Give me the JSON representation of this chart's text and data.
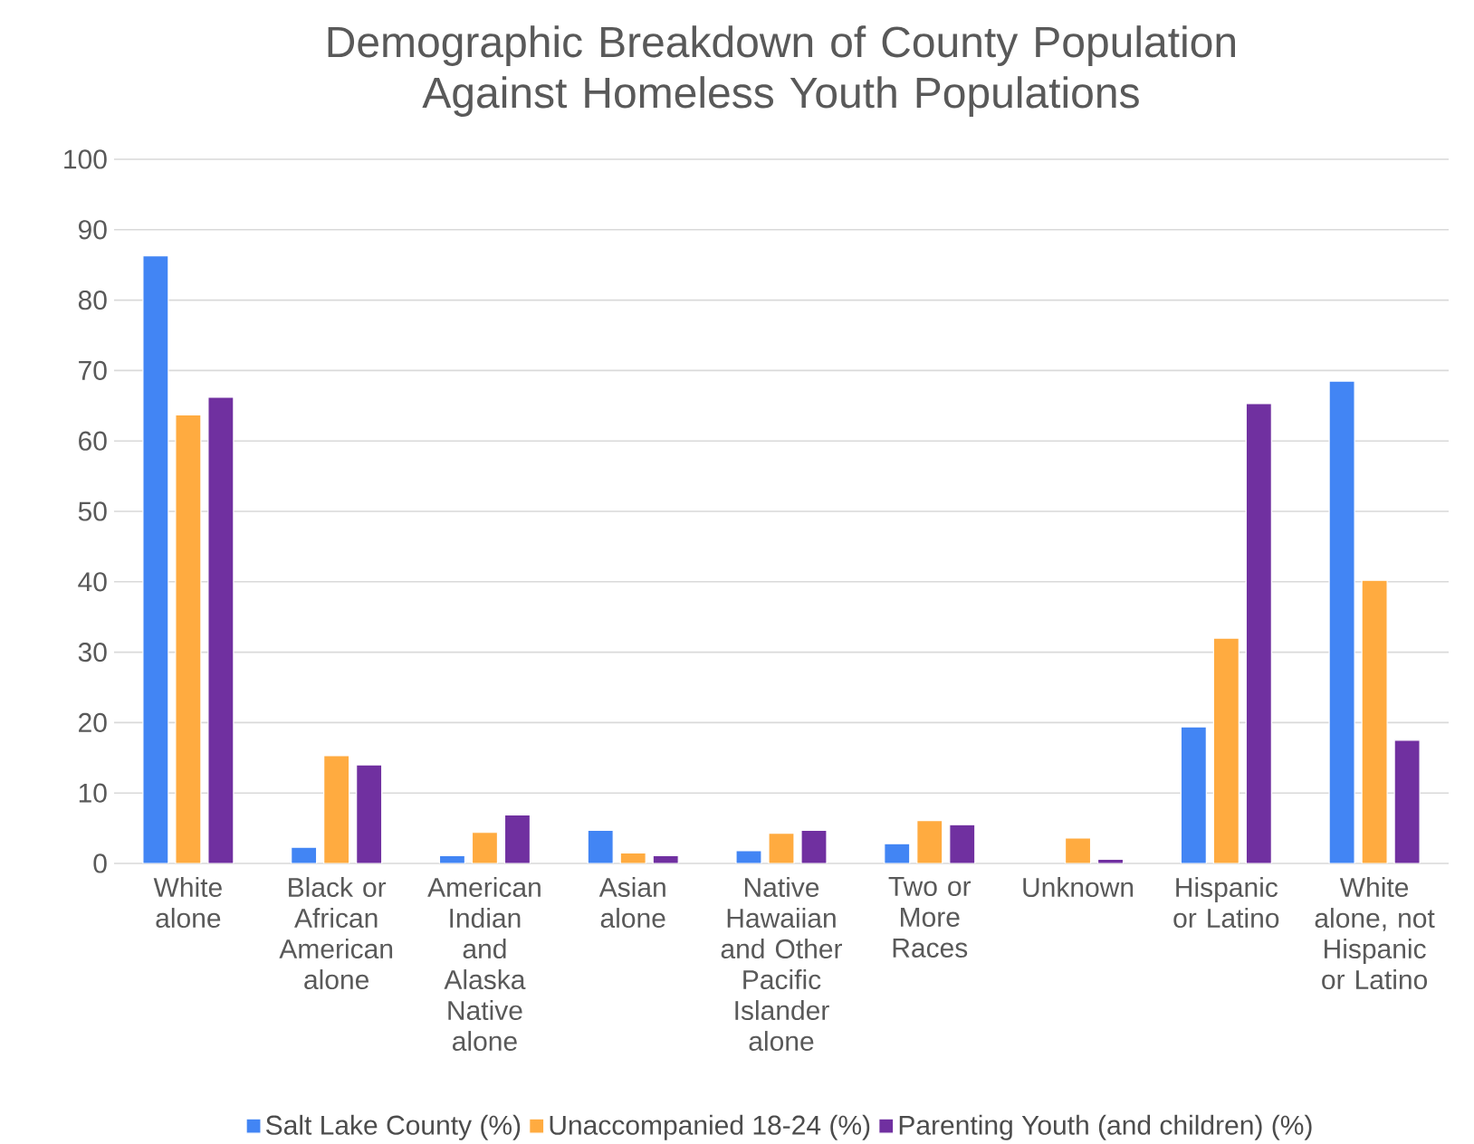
{
  "chart_data": {
    "type": "bar",
    "title": "Demographic Breakdown of County Population Against Homeless Youth Populations",
    "categories": [
      "White alone",
      "Black or African American alone",
      "American Indian and Alaska Native alone",
      "Asian alone",
      "Native Hawaiian and Other Pacific Islander alone",
      "Two or More Races",
      "Unknown",
      "Hispanic or Latino",
      "White alone, not Hispanic or Latino"
    ],
    "series": [
      {
        "name": "Salt Lake County (%)",
        "color": "#4285f4",
        "values": [
          86.3,
          2.3,
          1.1,
          4.7,
          1.8,
          2.8,
          null,
          19.4,
          68.5
        ]
      },
      {
        "name": "Unaccompanied 18-24 (%)",
        "color": "#ffab40",
        "values": [
          63.7,
          15.3,
          4.4,
          1.5,
          4.3,
          6.1,
          3.6,
          32.0,
          40.2
        ]
      },
      {
        "name": "Parenting Youth (and children) (%)",
        "color": "#7030a0",
        "values": [
          66.2,
          14.0,
          6.9,
          1.1,
          4.7,
          5.5,
          0.6,
          65.3,
          17.5
        ]
      }
    ],
    "ylim": [
      0,
      100
    ],
    "yticks": [
      0,
      10,
      20,
      30,
      40,
      50,
      60,
      70,
      80,
      90,
      100
    ],
    "grid": "y",
    "legend": "bottom"
  }
}
